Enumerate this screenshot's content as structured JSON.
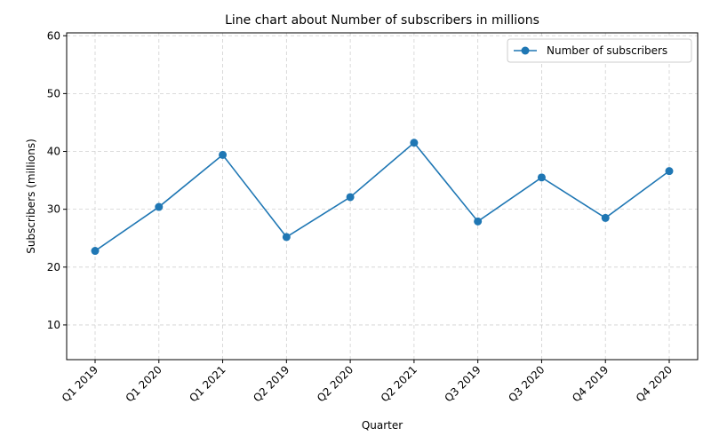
{
  "chart_data": {
    "type": "line",
    "title": "Line chart about Number of subscribers in millions",
    "xlabel": "Quarter",
    "ylabel": "Subscribers (millions)",
    "categories": [
      "Q1 2019",
      "Q1 2020",
      "Q1 2021",
      "Q2 2019",
      "Q2 2020",
      "Q2 2021",
      "Q3 2019",
      "Q3 2020",
      "Q4 2019",
      "Q4 2020"
    ],
    "series": [
      {
        "name": "Number of subscribers",
        "values": [
          22.8,
          30.4,
          39.4,
          25.2,
          32.1,
          41.5,
          27.9,
          35.5,
          28.5,
          36.6
        ],
        "color": "#1f77b4",
        "marker": "circle"
      }
    ],
    "ylim": [
      4,
      60.5
    ],
    "yticks": [
      10,
      20,
      30,
      40,
      50,
      60
    ],
    "grid": true,
    "legend_position": "top-right"
  }
}
